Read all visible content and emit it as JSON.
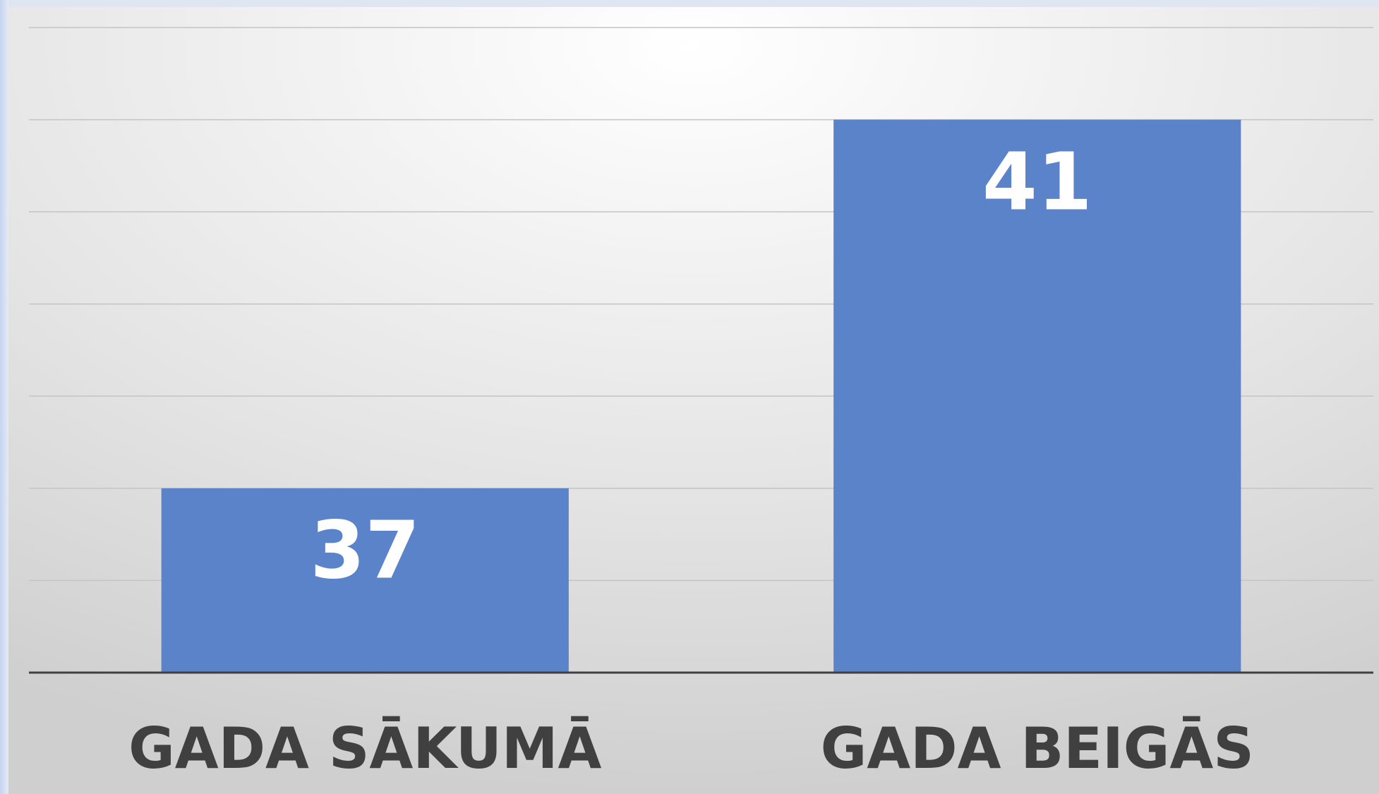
{
  "chart_data": {
    "type": "bar",
    "categories": [
      "GADA SĀKUMĀ",
      "GADA BEIGĀS"
    ],
    "values": [
      37,
      41
    ],
    "color": "#5b83c9",
    "ylim": [
      35,
      42
    ],
    "yticks": [
      35,
      36,
      37,
      38,
      39,
      40,
      41,
      42
    ],
    "grid": true
  }
}
